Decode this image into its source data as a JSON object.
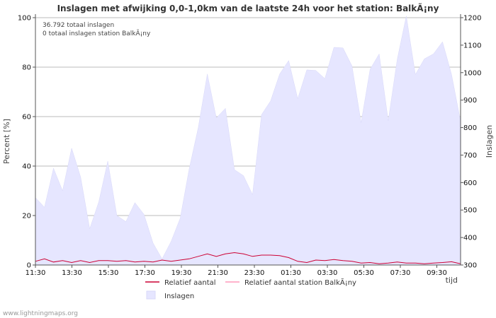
{
  "chart_data": {
    "type": "area",
    "title": "Inslagen met afwijking 0,0-1,0km van de laatste 24h voor het station: BalkÃ¡ny",
    "ylabel_left": "Percent   [%]",
    "ylabel_right": "Inslagen",
    "xlabel": "tijd",
    "ylim_left": [
      0,
      100
    ],
    "ylim_right": [
      300,
      1200
    ],
    "yticks_left": [
      0,
      20,
      40,
      60,
      80,
      100
    ],
    "yticks_right": [
      300,
      400,
      500,
      600,
      700,
      800,
      900,
      1000,
      1100,
      1200
    ],
    "x_ticks": [
      "11:30",
      "13:30",
      "15:30",
      "17:30",
      "19:30",
      "21:30",
      "23:30",
      "01:30",
      "03:30",
      "05:30",
      "07:30",
      "09:30"
    ],
    "info": [
      "36.792 totaal inslagen",
      "0 totaal inslagen station BalkÃ¡ny"
    ],
    "legend": {
      "relatief": "Relatief aantal",
      "relatief_station": "Relatief aantal station BalkÃ¡ny",
      "inslagen": "Inslagen"
    },
    "colors": {
      "area_fill": "#e6e6ff",
      "area_line": "#d8d8f8",
      "relatief": "#cc0033",
      "relatief_station": "#ff99bb",
      "grid": "#bbbbbb"
    },
    "series": [
      {
        "name": "Inslagen",
        "axis": "right",
        "values": [
          545,
          510,
          652,
          570,
          725,
          620,
          432,
          530,
          678,
          480,
          458,
          527,
          484,
          380,
          322,
          386,
          470,
          650,
          800,
          995,
          835,
          870,
          647,
          625,
          556,
          847,
          897,
          995,
          1044,
          905,
          1010,
          1008,
          978,
          1092,
          1090,
          1024,
          818,
          1012,
          1068,
          825,
          1048,
          1206,
          993,
          1050,
          1068,
          1112,
          994,
          823
        ]
      },
      {
        "name": "Relatief aantal",
        "axis": "left",
        "values": [
          1.5,
          2.5,
          1.2,
          1.8,
          1.0,
          1.8,
          1.0,
          1.8,
          1.8,
          1.5,
          1.8,
          1.2,
          1.5,
          1.2,
          2.0,
          1.5,
          2.0,
          2.5,
          3.5,
          4.5,
          3.5,
          4.5,
          5.0,
          4.5,
          3.5,
          4.0,
          4.0,
          3.8,
          3.0,
          1.5,
          1.0,
          2.0,
          1.8,
          2.2,
          1.8,
          1.5,
          0.8,
          1.0,
          0.5,
          0.8,
          1.2,
          0.8,
          0.8,
          0.5,
          0.8,
          1.0,
          1.3,
          0.5
        ]
      },
      {
        "name": "Relatief aantal station BalkÃ¡ny",
        "axis": "left",
        "values": [
          0,
          0,
          0,
          0,
          0,
          0,
          0,
          0,
          0,
          0,
          0,
          0,
          0,
          0,
          0,
          0,
          0,
          0,
          0,
          0,
          0,
          0,
          0,
          0,
          0,
          0,
          0,
          0,
          0,
          0,
          0,
          0,
          0,
          0,
          0,
          0,
          0,
          0,
          0,
          0,
          0,
          0,
          0,
          0,
          0,
          0,
          0,
          0
        ]
      }
    ]
  },
  "footer": "www.lightningmaps.org"
}
